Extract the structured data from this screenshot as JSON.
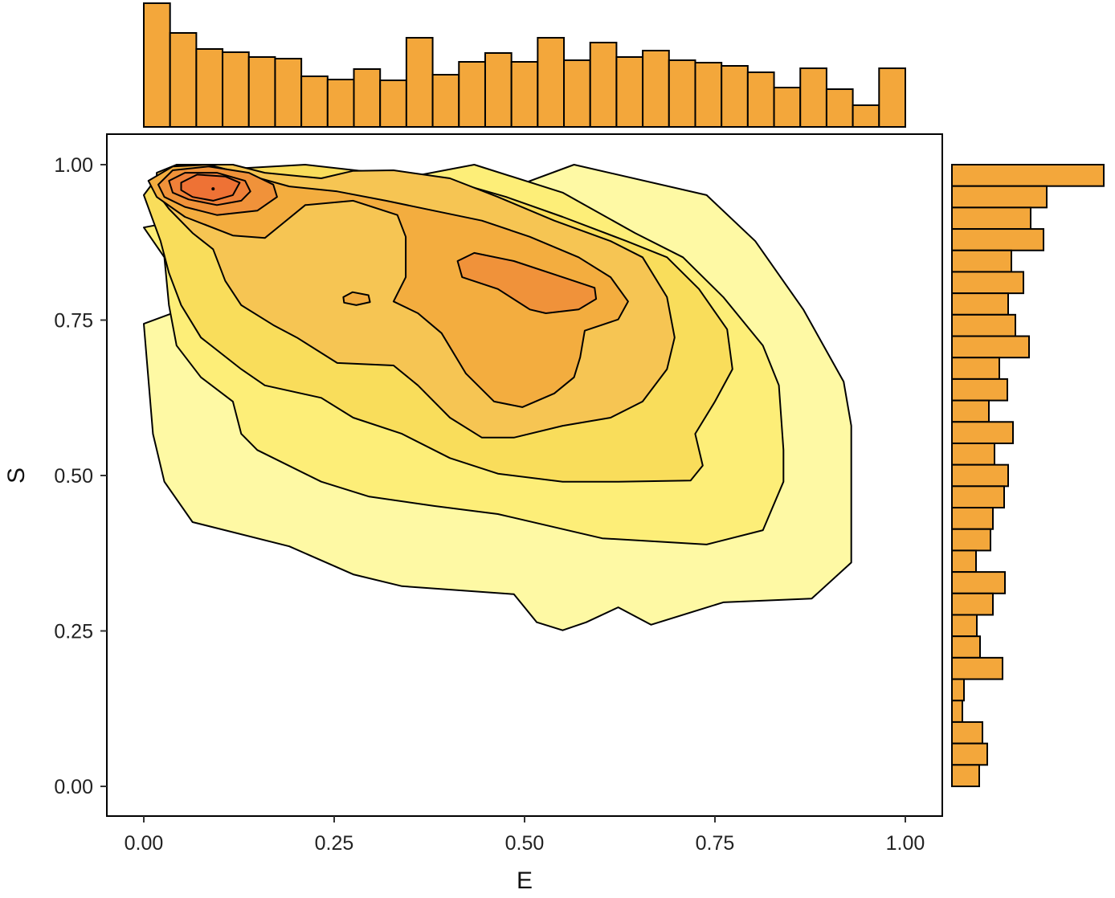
{
  "chart_data": {
    "type": "contour-with-marginal-histograms",
    "xlabel": "E",
    "ylabel": "S",
    "xlim": [
      0,
      1
    ],
    "ylim": [
      0,
      1
    ],
    "xticks": [
      "0.00",
      "0.25",
      "0.50",
      "0.75",
      "1.00"
    ],
    "yticks": [
      "0.00",
      "0.25",
      "0.50",
      "0.75",
      "1.00"
    ],
    "xtick_values": [
      0,
      0.25,
      0.5,
      0.75,
      1
    ],
    "ytick_values": [
      0,
      0.25,
      0.5,
      0.75,
      1
    ],
    "hist_color": "#f3a73b",
    "top_histogram": {
      "variable": "E",
      "range": [
        0,
        1
      ],
      "counts": [
        154,
        117,
        97,
        93,
        87,
        85,
        63,
        59,
        72,
        58,
        111,
        65,
        81,
        92,
        81,
        111,
        83,
        105,
        87,
        95,
        83,
        80,
        76,
        68,
        49,
        73,
        47,
        27,
        73
      ]
    },
    "right_histogram": {
      "variable": "S",
      "range": [
        1,
        0
      ],
      "counts": [
        189,
        118,
        98,
        114,
        74,
        89,
        70,
        79,
        96,
        59,
        69,
        46,
        76,
        53,
        70,
        65,
        51,
        48,
        30,
        66,
        51,
        31,
        35,
        63,
        15,
        13,
        38,
        44,
        34
      ]
    },
    "contours": [
      {
        "level": 1,
        "color": "#fef9a4",
        "polys": [
          [
            [
              0,
              0.744
            ],
            [
              0.565,
              1.0
            ],
            [
              0.739,
              0.951
            ],
            [
              0.803,
              0.877
            ],
            [
              0.866,
              0.767
            ],
            [
              0.919,
              0.651
            ],
            [
              0.929,
              0.58
            ],
            [
              0.929,
              0.36
            ],
            [
              0.877,
              0.302
            ],
            [
              0.761,
              0.296
            ],
            [
              0.666,
              0.26
            ],
            [
              0.623,
              0.288
            ],
            [
              0.581,
              0.264
            ],
            [
              0.55,
              0.251
            ],
            [
              0.516,
              0.264
            ],
            [
              0.486,
              0.309
            ],
            [
              0.339,
              0.322
            ],
            [
              0.275,
              0.341
            ],
            [
              0.191,
              0.386
            ],
            [
              0.064,
              0.425
            ],
            [
              0.027,
              0.49
            ],
            [
              0.012,
              0.567
            ]
          ]
        ]
      },
      {
        "level": 2,
        "color": "#fdee78",
        "polys": [
          [
            [
              0,
              0.899
            ],
            [
              0.434,
              1.0
            ],
            [
              0.55,
              0.955
            ],
            [
              0.645,
              0.89
            ],
            [
              0.708,
              0.851
            ],
            [
              0.761,
              0.787
            ],
            [
              0.813,
              0.709
            ],
            [
              0.834,
              0.645
            ],
            [
              0.84,
              0.541
            ],
            [
              0.84,
              0.49
            ],
            [
              0.813,
              0.412
            ],
            [
              0.739,
              0.389
            ],
            [
              0.602,
              0.399
            ],
            [
              0.465,
              0.438
            ],
            [
              0.381,
              0.451
            ],
            [
              0.296,
              0.466
            ],
            [
              0.233,
              0.49
            ],
            [
              0.149,
              0.541
            ],
            [
              0.128,
              0.567
            ],
            [
              0.117,
              0.619
            ],
            [
              0.075,
              0.658
            ],
            [
              0.043,
              0.709
            ],
            [
              0.033,
              0.774
            ],
            [
              0.027,
              0.851
            ]
          ]
        ]
      },
      {
        "level": 3,
        "color": "#f9dd5b",
        "polys": [
          [
            [
              0,
              0.951
            ],
            [
              0.022,
              0.987
            ],
            [
              0.212,
              1.0
            ],
            [
              0.307,
              0.987
            ],
            [
              0.402,
              0.974
            ],
            [
              0.476,
              0.948
            ],
            [
              0.55,
              0.916
            ],
            [
              0.634,
              0.877
            ],
            [
              0.687,
              0.851
            ],
            [
              0.729,
              0.8
            ],
            [
              0.766,
              0.735
            ],
            [
              0.773,
              0.671
            ],
            [
              0.75,
              0.619
            ],
            [
              0.724,
              0.567
            ],
            [
              0.734,
              0.516
            ],
            [
              0.718,
              0.492
            ],
            [
              0.623,
              0.49
            ],
            [
              0.55,
              0.49
            ],
            [
              0.465,
              0.503
            ],
            [
              0.402,
              0.528
            ],
            [
              0.339,
              0.567
            ],
            [
              0.275,
              0.593
            ],
            [
              0.233,
              0.625
            ],
            [
              0.159,
              0.645
            ],
            [
              0.128,
              0.671
            ],
            [
              0.075,
              0.722
            ],
            [
              0.049,
              0.774
            ],
            [
              0.033,
              0.826
            ],
            [
              0.022,
              0.877
            ]
          ]
        ]
      },
      {
        "level": 4,
        "color": "#f6c553",
        "polys": [
          [
            [
              0.017,
              0.987
            ],
            [
              0.043,
              1.0
            ],
            [
              0.117,
              1.0
            ],
            [
              0.159,
              0.987
            ],
            [
              0.233,
              0.978
            ],
            [
              0.275,
              0.99
            ],
            [
              0.328,
              0.991
            ],
            [
              0.402,
              0.978
            ],
            [
              0.465,
              0.948
            ],
            [
              0.539,
              0.91
            ],
            [
              0.613,
              0.877
            ],
            [
              0.655,
              0.851
            ],
            [
              0.687,
              0.787
            ],
            [
              0.697,
              0.722
            ],
            [
              0.687,
              0.671
            ],
            [
              0.655,
              0.619
            ],
            [
              0.613,
              0.593
            ],
            [
              0.55,
              0.58
            ],
            [
              0.486,
              0.561
            ],
            [
              0.444,
              0.561
            ],
            [
              0.402,
              0.593
            ],
            [
              0.36,
              0.645
            ],
            [
              0.328,
              0.677
            ],
            [
              0.254,
              0.681
            ],
            [
              0.201,
              0.722
            ],
            [
              0.17,
              0.742
            ],
            [
              0.128,
              0.774
            ],
            [
              0.107,
              0.813
            ],
            [
              0.091,
              0.864
            ],
            [
              0.064,
              0.89
            ],
            [
              0.033,
              0.929
            ],
            [
              0.017,
              0.955
            ]
          ]
        ]
      },
      {
        "level": 5,
        "color": "#f3ad3f",
        "polys": [
          [
            [
              0.006,
              0.974
            ],
            [
              0.038,
              0.997
            ],
            [
              0.085,
              1.0
            ],
            [
              0.138,
              0.983
            ],
            [
              0.191,
              0.965
            ],
            [
              0.254,
              0.957
            ],
            [
              0.318,
              0.942
            ],
            [
              0.381,
              0.926
            ],
            [
              0.444,
              0.91
            ],
            [
              0.507,
              0.884
            ],
            [
              0.571,
              0.851
            ],
            [
              0.613,
              0.819
            ],
            [
              0.636,
              0.78
            ],
            [
              0.623,
              0.751
            ],
            [
              0.579,
              0.733
            ],
            [
              0.573,
              0.69
            ],
            [
              0.565,
              0.658
            ],
            [
              0.539,
              0.632
            ],
            [
              0.497,
              0.61
            ],
            [
              0.46,
              0.619
            ],
            [
              0.423,
              0.664
            ],
            [
              0.391,
              0.729
            ],
            [
              0.36,
              0.761
            ],
            [
              0.328,
              0.78
            ],
            [
              0.344,
              0.819
            ],
            [
              0.344,
              0.884
            ],
            [
              0.333,
              0.919
            ],
            [
              0.275,
              0.942
            ],
            [
              0.212,
              0.935
            ],
            [
              0.18,
              0.903
            ],
            [
              0.159,
              0.882
            ],
            [
              0.117,
              0.886
            ],
            [
              0.054,
              0.916
            ],
            [
              0.017,
              0.948
            ]
          ],
          [
            [
              0.262,
              0.787
            ],
            [
              0.274,
              0.795
            ],
            [
              0.295,
              0.79
            ],
            [
              0.297,
              0.779
            ],
            [
              0.279,
              0.774
            ],
            [
              0.263,
              0.778
            ]
          ]
        ]
      },
      {
        "level": 6,
        "color": "#f0923a",
        "polys": [
          [
            [
              0.412,
              0.845
            ],
            [
              0.434,
              0.858
            ],
            [
              0.486,
              0.845
            ],
            [
              0.55,
              0.819
            ],
            [
              0.592,
              0.802
            ],
            [
              0.594,
              0.784
            ],
            [
              0.571,
              0.767
            ],
            [
              0.528,
              0.761
            ],
            [
              0.507,
              0.767
            ],
            [
              0.465,
              0.8
            ],
            [
              0.418,
              0.819
            ]
          ],
          [
            [
              0.019,
              0.968
            ],
            [
              0.038,
              0.991
            ],
            [
              0.085,
              0.997
            ],
            [
              0.138,
              0.987
            ],
            [
              0.17,
              0.968
            ],
            [
              0.175,
              0.948
            ],
            [
              0.149,
              0.926
            ],
            [
              0.096,
              0.919
            ],
            [
              0.054,
              0.932
            ],
            [
              0.027,
              0.948
            ]
          ]
        ]
      },
      {
        "level": 7,
        "color": "#ef8038",
        "polys": [
          [
            [
              0.033,
              0.974
            ],
            [
              0.054,
              0.987
            ],
            [
              0.096,
              0.987
            ],
            [
              0.133,
              0.974
            ],
            [
              0.14,
              0.957
            ],
            [
              0.128,
              0.942
            ],
            [
              0.096,
              0.935
            ],
            [
              0.059,
              0.944
            ],
            [
              0.038,
              0.955
            ]
          ]
        ]
      },
      {
        "level": 8,
        "color": "#ee7235",
        "polys": [
          [
            [
              0.049,
              0.971
            ],
            [
              0.07,
              0.984
            ],
            [
              0.107,
              0.981
            ],
            [
              0.126,
              0.971
            ],
            [
              0.117,
              0.951
            ],
            [
              0.091,
              0.942
            ],
            [
              0.064,
              0.948
            ],
            [
              0.049,
              0.959
            ]
          ]
        ]
      }
    ],
    "peak_point": [
      0.091,
      0.961
    ]
  }
}
